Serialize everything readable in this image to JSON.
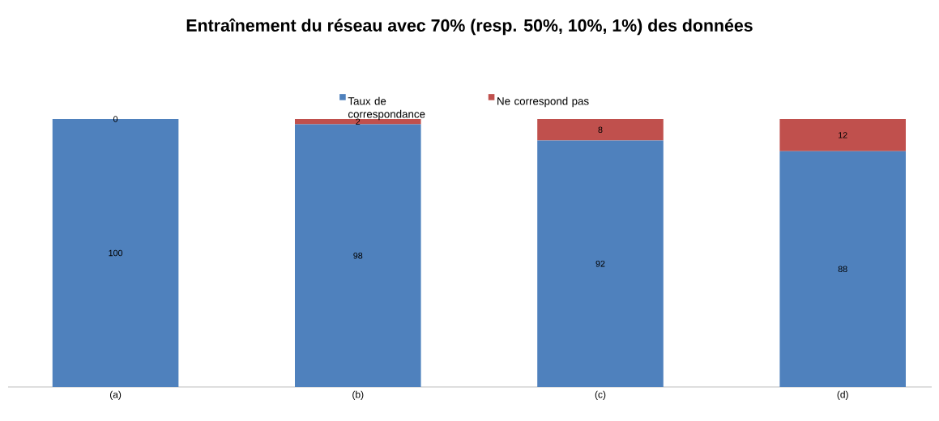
{
  "chart_data": {
    "type": "bar",
    "title": "Entraînement du réseau avec 70% (resp.  50%, 10%, 1%) des données",
    "categories": [
      "(a)",
      "(b)",
      "(c)",
      "(d)"
    ],
    "series": [
      {
        "name": "Taux de correspondance",
        "color": "#4f81bd",
        "values": [
          100,
          98,
          92,
          88
        ]
      },
      {
        "name": "Ne correspond pas",
        "color": "#c0504d",
        "values": [
          0,
          2,
          8,
          12
        ]
      }
    ],
    "stacked": true,
    "data_labels": true,
    "legend": "top"
  }
}
